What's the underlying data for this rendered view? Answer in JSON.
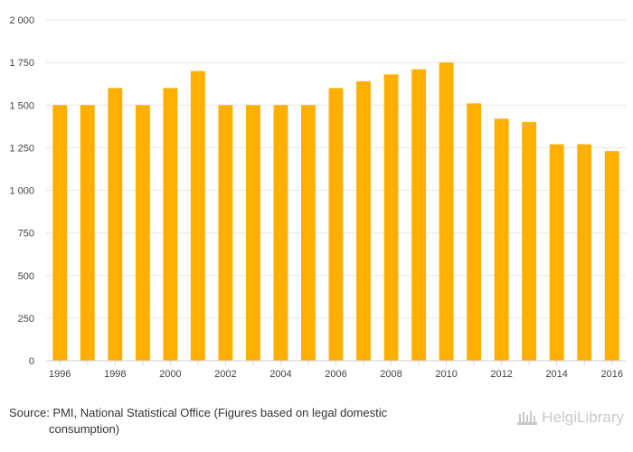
{
  "chart_data": {
    "type": "bar",
    "title": "",
    "xlabel": "",
    "ylabel": "",
    "categories": [
      "1996",
      "1997",
      "1998",
      "1999",
      "2000",
      "2001",
      "2002",
      "2003",
      "2004",
      "2005",
      "2006",
      "2007",
      "2008",
      "2009",
      "2010",
      "2011",
      "2012",
      "2013",
      "2014",
      "2015",
      "2016"
    ],
    "values": [
      1500,
      1500,
      1600,
      1500,
      1600,
      1700,
      1500,
      1500,
      1500,
      1500,
      1600,
      1640,
      1680,
      1710,
      1750,
      1510,
      1420,
      1400,
      1270,
      1270,
      1230
    ],
    "x_tick_labels": [
      "1996",
      "1998",
      "2000",
      "2002",
      "2004",
      "2006",
      "2008",
      "2010",
      "2012",
      "2014",
      "2016"
    ],
    "y_tick_labels": [
      "0",
      "250",
      "500",
      "750",
      "1 000",
      "1 250",
      "1 500",
      "1 750",
      "2 000"
    ],
    "y_ticks": [
      0,
      250,
      500,
      750,
      1000,
      1250,
      1500,
      1750,
      2000
    ],
    "ylim": [
      0,
      2000
    ],
    "grid": true,
    "bar_color": "#FFAF00"
  },
  "source": {
    "line1": "Source: PMI, National Statistical Office (Figures based on legal domestic",
    "line2": "consumption)"
  },
  "logo": {
    "text": "HelgiLibrary",
    "color": "#C9C9C9"
  }
}
